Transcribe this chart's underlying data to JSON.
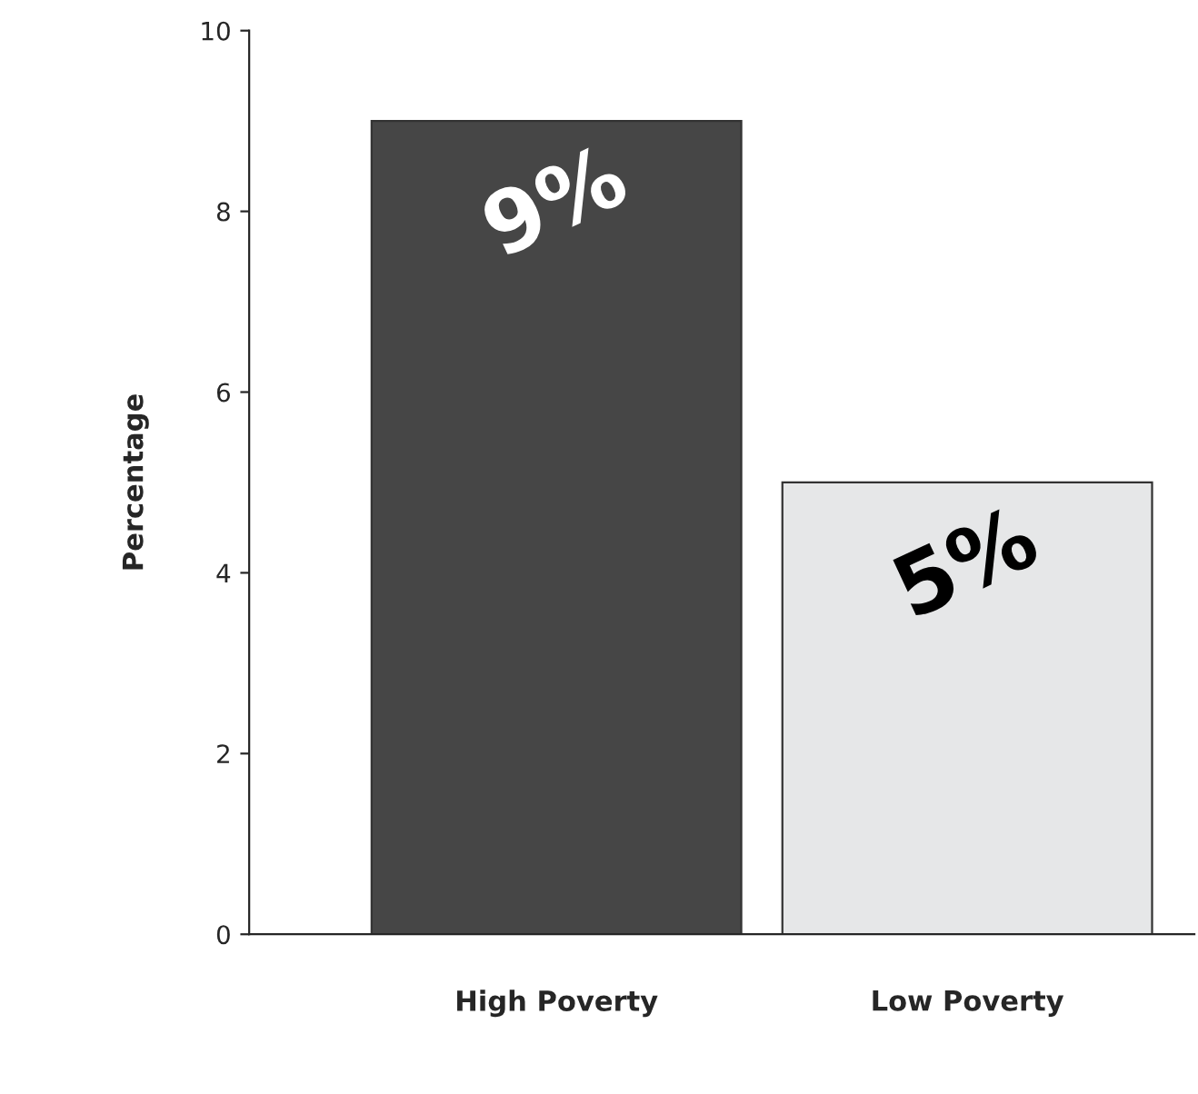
{
  "chart_data": {
    "type": "bar",
    "categories": [
      "High Poverty",
      "Low Poverty"
    ],
    "values": [
      9,
      5
    ],
    "colors": [
      "#464646",
      "#e6e7e8"
    ],
    "value_labels": [
      "9%",
      "5%"
    ],
    "ylabel": "Percentage",
    "ylim": [
      0,
      10
    ],
    "yticks": [
      0,
      2,
      4,
      6,
      8,
      10
    ],
    "grid": false,
    "legend": false
  }
}
